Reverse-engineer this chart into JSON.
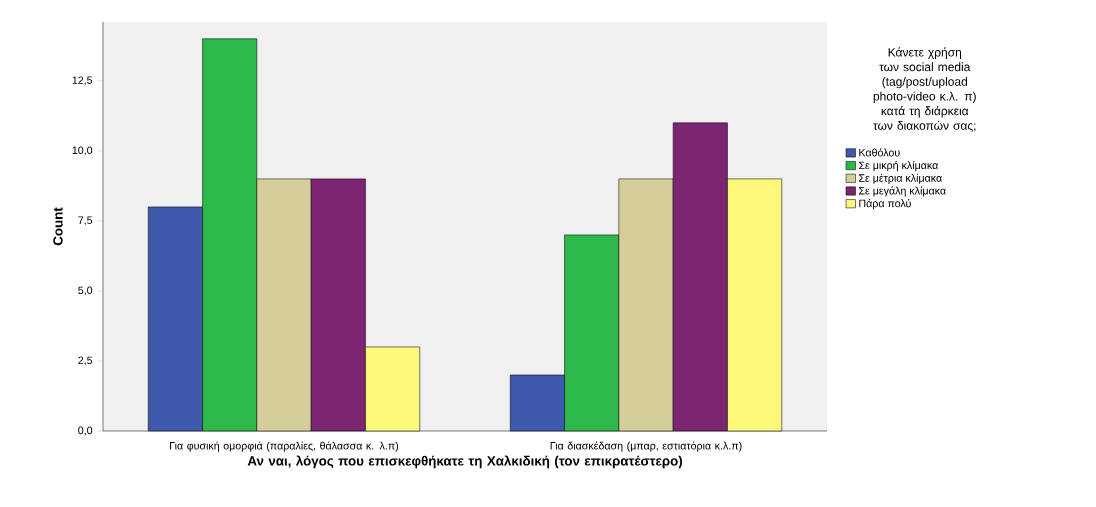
{
  "chart_data": {
    "type": "bar",
    "xlabel": "Αν ναι,  λόγος που επισκεφθήκατε τη Χαλκιδική (τον επικρατέστερο)",
    "ylabel": "Count",
    "legend_title": "Κάνετε χρήση των  social media (tag/post/upload photo-video κ.λ. π) κατά τη διάρκεια των διακοπών σας;",
    "legend": "right",
    "categories": [
      "Για φυσική ομορφιά (παραλίες, θάλασσα κ. λ.π)",
      "Για διασκέδαση (μπαρ, εστιατόρια κ.λ.π)"
    ],
    "series": [
      {
        "name": "Καθόλου",
        "color": "#3e58ac",
        "values": [
          8,
          2
        ]
      },
      {
        "name": "Σε μικρή κλίμακα",
        "color": "#2db84b",
        "values": [
          14,
          7
        ]
      },
      {
        "name": "Σε μέτρια κλίμακα",
        "color": "#d5ce9a",
        "values": [
          9,
          9
        ]
      },
      {
        "name": "Σε μεγάλη κλίμακα",
        "color": "#7b2573",
        "values": [
          9,
          11
        ]
      },
      {
        "name": "Πάρα πολύ",
        "color": "#fbf87a",
        "values": [
          3,
          9
        ]
      }
    ],
    "ylim": [
      0,
      14.6
    ],
    "yticks": [
      {
        "value": 0,
        "label": "0,0"
      },
      {
        "value": 2.5,
        "label": "2,5"
      },
      {
        "value": 5,
        "label": "5,0"
      },
      {
        "value": 7.5,
        "label": "7,5"
      },
      {
        "value": 10,
        "label": "10,0"
      },
      {
        "value": 12.5,
        "label": "12,5"
      }
    ]
  }
}
